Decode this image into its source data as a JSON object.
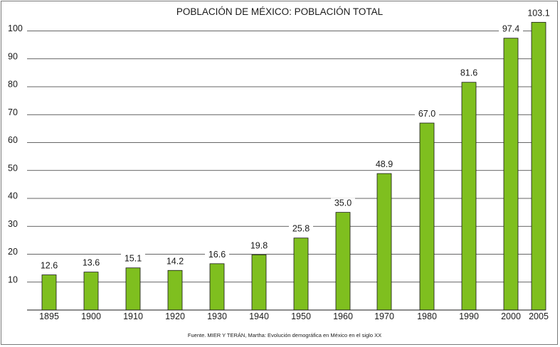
{
  "chart_data": {
    "type": "bar",
    "title": "POBLACIÓN DE MÉXICO: POBLACIÓN TOTAL",
    "categories": [
      "1895",
      "1900",
      "1910",
      "1920",
      "1930",
      "1940",
      "1950",
      "1960",
      "1970",
      "1980",
      "1990",
      "2000",
      "2005"
    ],
    "values": [
      12.6,
      13.6,
      15.1,
      14.2,
      16.6,
      19.8,
      25.8,
      35.0,
      48.9,
      67.0,
      81.6,
      97.4,
      103.1
    ],
    "value_labels": [
      "12.6",
      "13.6",
      "15.1",
      "14.2",
      "16.6",
      "19.8",
      "25.8",
      "35.0",
      "48.9",
      "67.0",
      "81.6",
      "97.4",
      "103.1"
    ],
    "yticks": [
      10,
      20,
      30,
      40,
      50,
      60,
      70,
      80,
      90,
      100
    ],
    "ylim": [
      0,
      100
    ],
    "xlabel": "",
    "ylabel": "",
    "grid": true,
    "source": "Fuente. MIER Y TERÁN, Martha: Evolución demográfica en México en el siglo XX",
    "colors": {
      "bar": "#7fbf1f",
      "bar_edge": "#1a1a1a",
      "grid": "#333333"
    }
  }
}
